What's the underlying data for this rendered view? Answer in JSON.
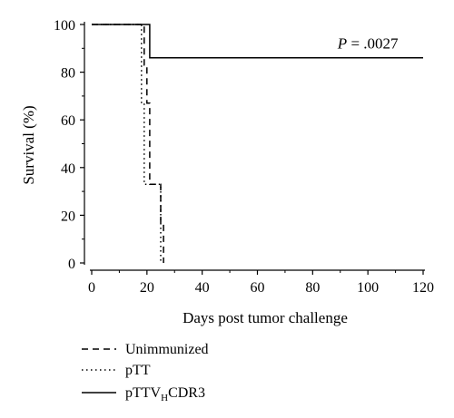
{
  "chart_data": {
    "type": "line",
    "subtype": "step (Kaplan-Meier survival)",
    "xlabel": "Days post tumor challenge",
    "ylabel": "Survival (%)",
    "xlim": [
      0,
      120
    ],
    "ylim": [
      0,
      100
    ],
    "xticks": [
      "0",
      "20",
      "40",
      "60",
      "80",
      "100",
      "120"
    ],
    "yticks": [
      "0",
      "20",
      "40",
      "60",
      "80",
      "100"
    ],
    "grid": false,
    "legend_placement": "bottom-left",
    "annotation": {
      "italic": "P",
      "text": " = .0027",
      "x": 100,
      "y": 90
    },
    "series": [
      {
        "name": "Unimmunized",
        "line_style": "dashed",
        "color": "#000000",
        "x": [
          0,
          19,
          19,
          20,
          20,
          21,
          21,
          25,
          25,
          26,
          26
        ],
        "y": [
          100,
          100,
          83,
          83,
          67,
          67,
          33,
          33,
          17,
          17,
          0
        ]
      },
      {
        "name": "pTT",
        "line_style": "dotted",
        "color": "#000000",
        "x": [
          0,
          18,
          18,
          19,
          19,
          25,
          25
        ],
        "y": [
          100,
          100,
          67,
          67,
          33,
          33,
          0
        ]
      },
      {
        "name": "pTTV",
        "name_subscript": "H",
        "name_suffix": "CDR3",
        "line_style": "solid",
        "color": "#000000",
        "x": [
          0,
          21,
          21,
          120
        ],
        "y": [
          100,
          100,
          86,
          86
        ]
      }
    ]
  }
}
